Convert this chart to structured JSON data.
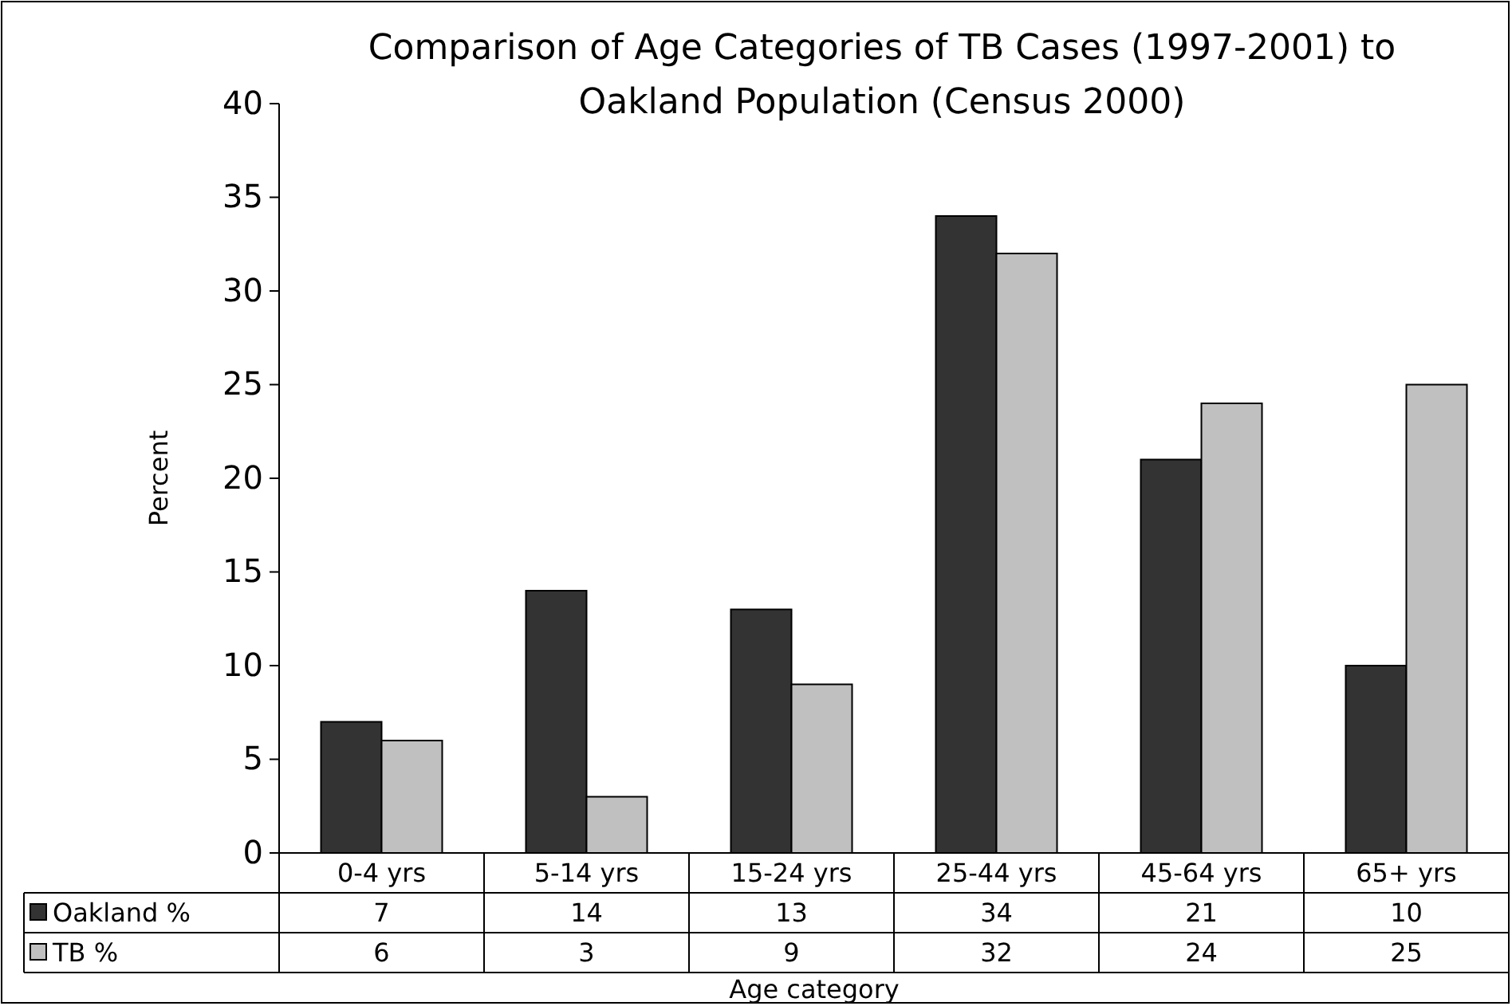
{
  "chart_data": {
    "type": "bar",
    "title": "Comparison of Age Categories of TB Cases (1997-2001) to Oakland Population (Census 2000)",
    "xlabel": "Age category",
    "ylabel": "Percent",
    "categories": [
      "0-4 yrs",
      "5-14 yrs",
      "15-24 yrs",
      "25-44 yrs",
      "45-64 yrs",
      "65+ yrs"
    ],
    "series": [
      {
        "name": "Oakland %",
        "color": "#333333",
        "values": [
          7,
          14,
          13,
          34,
          21,
          10
        ]
      },
      {
        "name": "TB %",
        "color": "#c0c0c0",
        "values": [
          6,
          3,
          9,
          32,
          24,
          25
        ]
      }
    ],
    "ylim": [
      0,
      40
    ],
    "yticks": [
      0,
      5,
      10,
      15,
      20,
      25,
      30,
      35,
      40
    ],
    "grid": false,
    "legend": "bottom",
    "data_labels": true
  }
}
